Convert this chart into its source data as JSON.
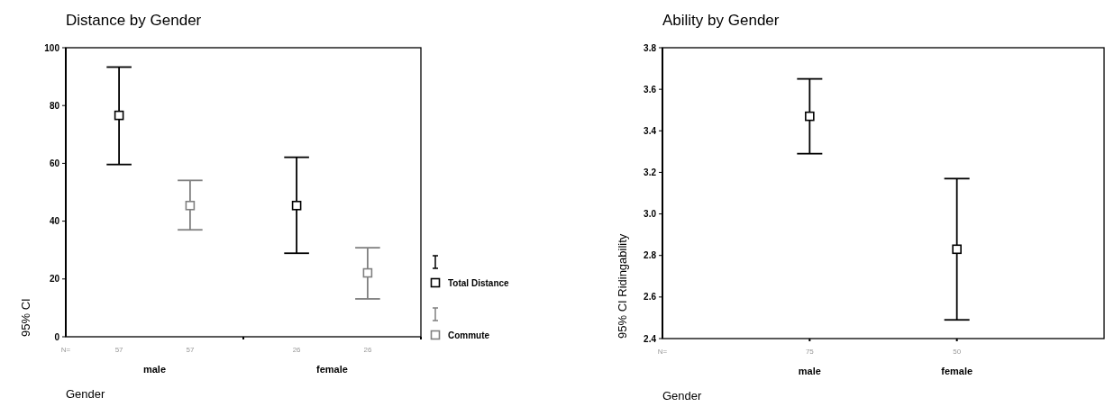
{
  "chart_data": [
    {
      "type": "scatter",
      "title": "Distance by Gender",
      "xlabel": "Gender",
      "ylabel": "95% CI",
      "categories": [
        "male",
        "female"
      ],
      "series": [
        {
          "name": "Total Distance",
          "color": "#000000",
          "values": [
            76.6,
            45.4
          ],
          "errors": [
            [
              59.6,
              93.3
            ],
            [
              28.9,
              62.1
            ]
          ]
        },
        {
          "name": "Commute",
          "color": "#808080",
          "values": [
            45.4,
            22.1
          ],
          "errors": [
            [
              37.0,
              54.1
            ],
            [
              13.1,
              30.8
            ]
          ]
        }
      ],
      "ylim": [
        0,
        100
      ],
      "yticks": [
        0,
        20,
        40,
        60,
        80,
        100
      ],
      "marker": "square",
      "legend": "right",
      "grid": false,
      "annotations": [
        "N=",
        "57",
        "57",
        "26",
        "26"
      ]
    },
    {
      "type": "scatter",
      "title": "Ability by Gender",
      "xlabel": "Gender",
      "ylabel": "95% CI Ridingability",
      "categories": [
        "male",
        "female"
      ],
      "series": [
        {
          "color": "#000000",
          "values": [
            3.47,
            2.83
          ],
          "errors": [
            [
              3.29,
              3.65
            ],
            [
              2.49,
              3.17
            ]
          ]
        }
      ],
      "ylim": [
        2.4,
        3.8
      ],
      "yticks": [
        {
          "value": 2.4,
          "label": "2.4"
        },
        {
          "value": 2.6,
          "label": "2.6"
        },
        {
          "value": 2.8,
          "label": "2.8"
        },
        {
          "value": 3.0,
          "label": "3.0"
        },
        {
          "value": 3.2,
          "label": "3.2"
        },
        {
          "value": 3.4,
          "label": "3.4"
        },
        {
          "value": 3.6,
          "label": "3.6"
        },
        {
          "value": 3.8,
          "label": "3.8"
        }
      ],
      "marker": "square",
      "grid": false,
      "annotations": [
        "N=",
        "75",
        "50"
      ]
    }
  ]
}
